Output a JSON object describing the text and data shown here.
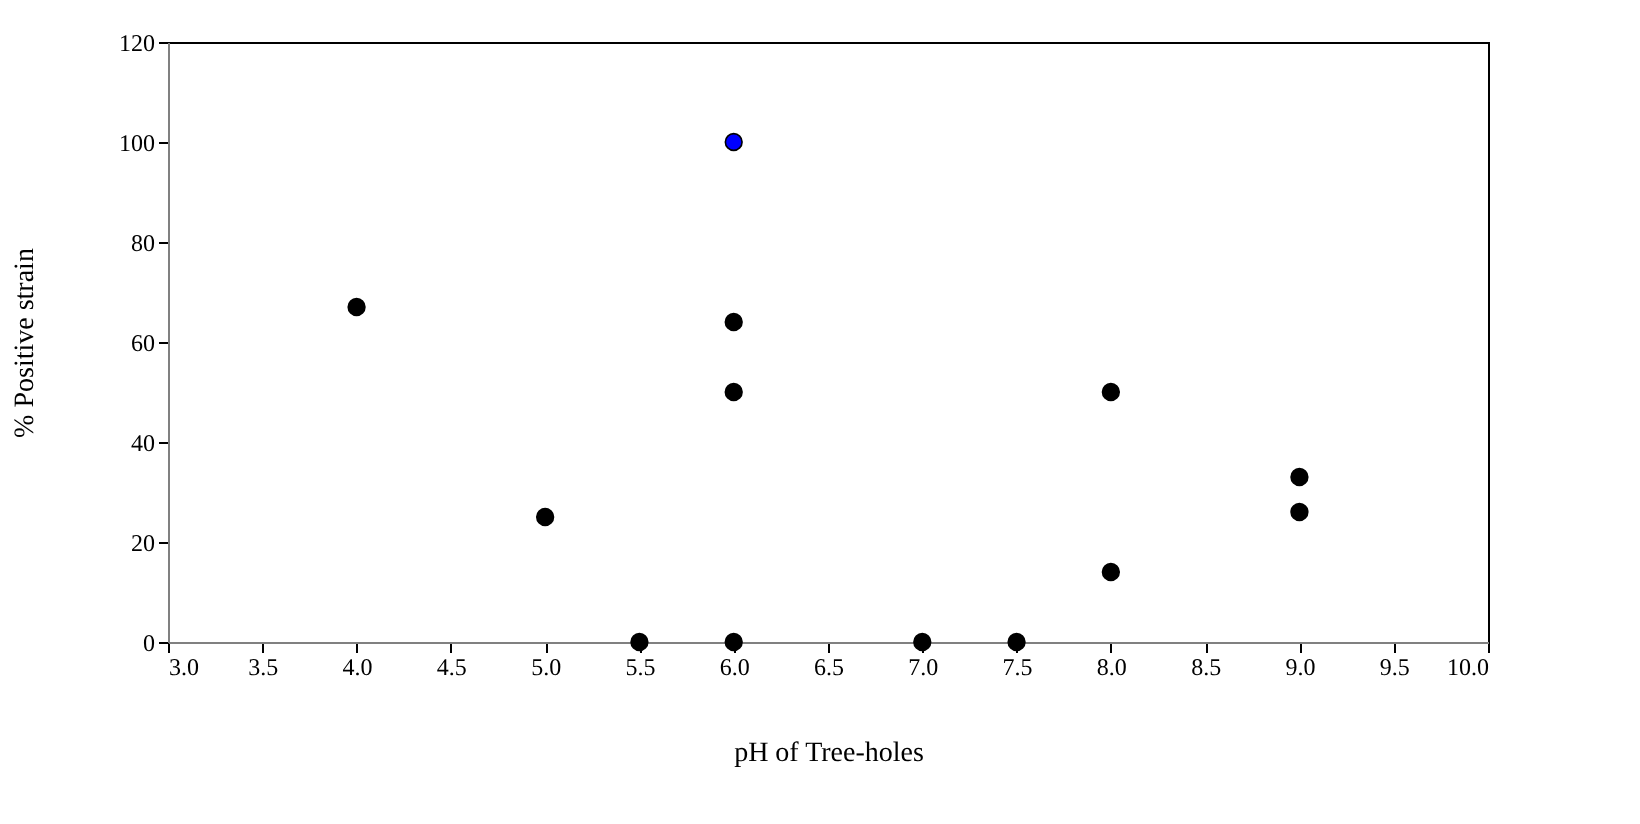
{
  "chart_data": {
    "type": "scatter",
    "xlabel": "pH of Tree-holes",
    "ylabel": "% Positive strain",
    "x": [
      4.0,
      5.0,
      5.5,
      6.0,
      6.0,
      6.0,
      6.0,
      7.0,
      7.5,
      8.0,
      8.0,
      9.0,
      9.0
    ],
    "values": [
      67,
      25,
      0,
      100,
      64,
      50,
      0,
      0,
      0,
      50,
      14,
      33,
      26
    ],
    "colors": [
      "#000000",
      "#000000",
      "#000000",
      "#0000ff",
      "#000000",
      "#000000",
      "#000000",
      "#000000",
      "#000000",
      "#000000",
      "#000000",
      "#000000",
      "#000000"
    ],
    "xlim": [
      3,
      10
    ],
    "xticks": [
      {
        "value": 3,
        "label": "3.0"
      },
      {
        "value": 3.5,
        "label": "3.5"
      },
      {
        "value": 4,
        "label": "4.0"
      },
      {
        "value": 4.5,
        "label": "4.5"
      },
      {
        "value": 5,
        "label": "5.0"
      },
      {
        "value": 5.5,
        "label": "5.5"
      },
      {
        "value": 6,
        "label": "6.0"
      },
      {
        "value": 6.5,
        "label": "6.5"
      },
      {
        "value": 7,
        "label": "7.0"
      },
      {
        "value": 7.5,
        "label": "7.5"
      },
      {
        "value": 8,
        "label": "8.0"
      },
      {
        "value": 8.5,
        "label": "8.5"
      },
      {
        "value": 9,
        "label": "9.0"
      },
      {
        "value": 9.5,
        "label": "9.5"
      },
      {
        "value": 10,
        "label": "10.0"
      }
    ],
    "ylim": [
      0,
      120
    ],
    "yticks": [
      0,
      20,
      40,
      60,
      80,
      100,
      120
    ],
    "marker": "circle",
    "grid": false
  }
}
